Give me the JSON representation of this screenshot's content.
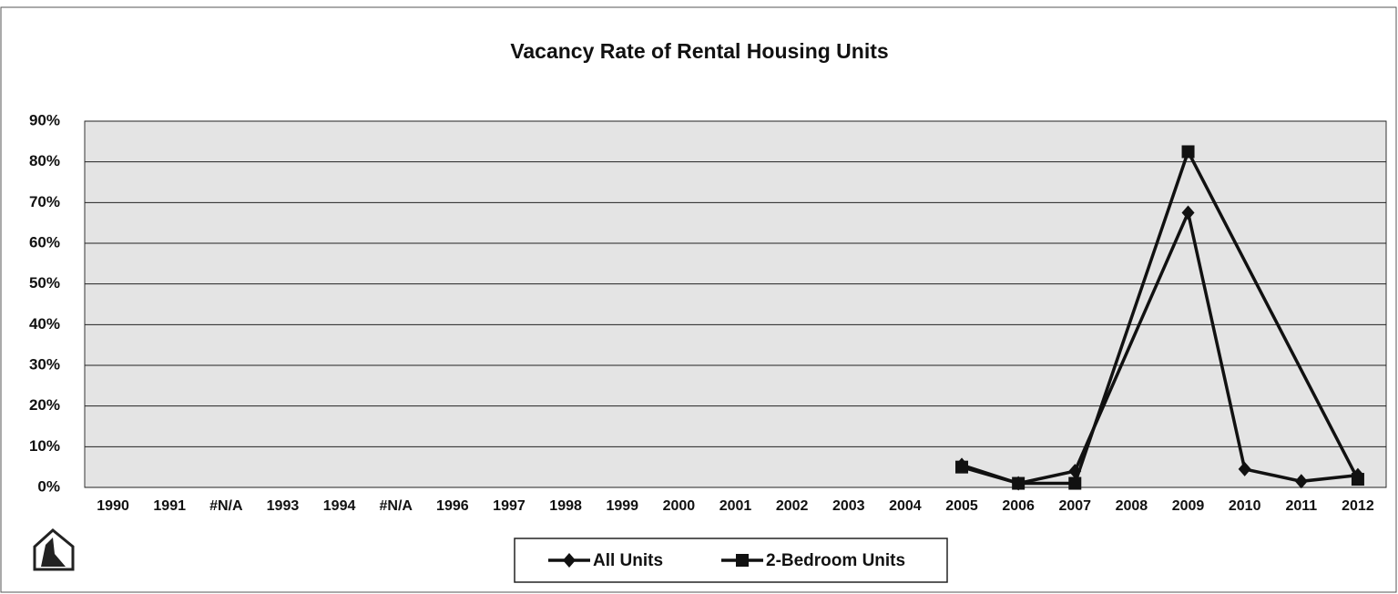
{
  "chart_data": {
    "type": "line",
    "title": "Vacancy Rate of Rental Housing Units",
    "categories": [
      "1990",
      "1991",
      "#N/A",
      "1993",
      "1994",
      "#N/A",
      "1996",
      "1997",
      "1998",
      "1999",
      "2000",
      "2001",
      "2002",
      "2003",
      "2004",
      "2005",
      "2006",
      "2007",
      "2008",
      "2009",
      "2010",
      "2011",
      "2012"
    ],
    "series": [
      {
        "name": "All Units",
        "color": "#111111",
        "marker": "diamond",
        "values": [
          null,
          null,
          null,
          null,
          null,
          null,
          null,
          null,
          null,
          null,
          null,
          null,
          null,
          null,
          null,
          5.5,
          1,
          4,
          null,
          67.5,
          4.5,
          1.5,
          3
        ]
      },
      {
        "name": "2-Bedroom Units",
        "color": "#111111",
        "marker": "square",
        "values": [
          null,
          null,
          null,
          null,
          null,
          null,
          null,
          null,
          null,
          null,
          null,
          null,
          null,
          null,
          null,
          5,
          1,
          1,
          null,
          82.5,
          null,
          null,
          2
        ]
      }
    ],
    "ylim": [
      0,
      90
    ],
    "yticks": [
      {
        "value": 0,
        "label": "0%"
      },
      {
        "value": 10,
        "label": "10%"
      },
      {
        "value": 20,
        "label": "20%"
      },
      {
        "value": 30,
        "label": "30%"
      },
      {
        "value": 40,
        "label": "40%"
      },
      {
        "value": 50,
        "label": "50%"
      },
      {
        "value": 60,
        "label": "60%"
      },
      {
        "value": 70,
        "label": "70%"
      },
      {
        "value": 80,
        "label": "80%"
      },
      {
        "value": 90,
        "label": "90%"
      }
    ],
    "grid": true,
    "span_gaps": true,
    "legend": "bottom"
  }
}
